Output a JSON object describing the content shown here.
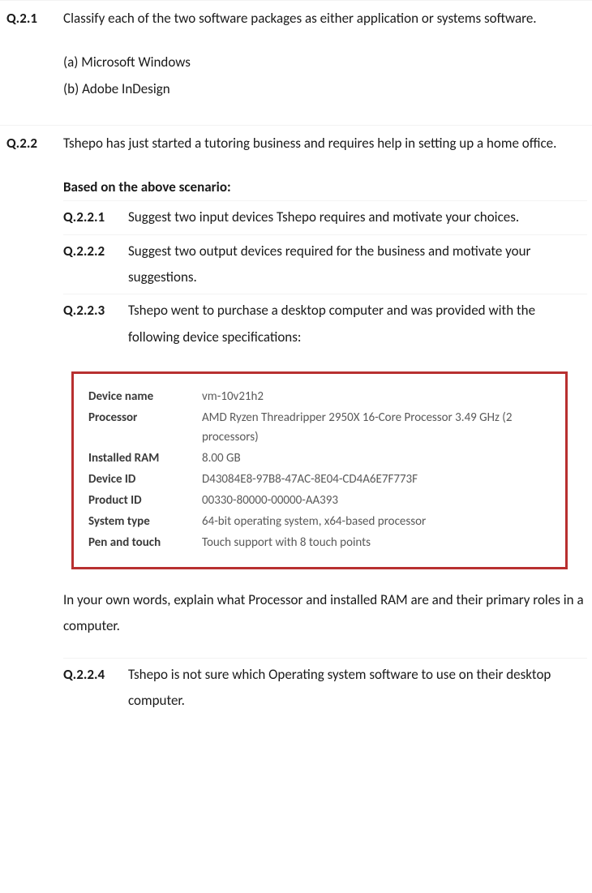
{
  "q21": {
    "num": "Q.2.1",
    "text": "Classify each of the two software packages as either application or systems software.",
    "a": "(a) Microsoft Windows",
    "b": "(b) Adobe InDesign"
  },
  "q22": {
    "num": "Q.2.2",
    "text": "Tshepo has just started a tutoring business and requires help in setting up a home office.",
    "scenario": "Based on the above scenario:",
    "s1": {
      "num": "Q.2.2.1",
      "text": "Suggest two input devices Tshepo requires and motivate your choices."
    },
    "s2": {
      "num": "Q.2.2.2",
      "text": "Suggest two output devices required for the business and motivate your suggestions."
    },
    "s3": {
      "num": "Q.2.2.3",
      "text": "Tshepo went to purchase a desktop computer and was provided with the following device specifications:"
    },
    "explain": "In your own words, explain what Processor and installed RAM are and their primary roles in a computer.",
    "s4": {
      "num": "Q.2.2.4",
      "text": "Tshepo is not sure which Operating system software to use on their desktop computer."
    }
  },
  "spec": {
    "border_color": "#b83030",
    "rows": [
      {
        "label": "Device name",
        "value": "vm-10v21h2"
      },
      {
        "label": "Processor",
        "value": "AMD Ryzen Threadripper 2950X 16-Core Processor 3.49 GHz  (2 processors)"
      },
      {
        "label": "Installed RAM",
        "value": "8.00 GB"
      },
      {
        "label": "Device ID",
        "value": "D43084E8-97B8-47AC-8E04-CD4A6E7F773F"
      },
      {
        "label": "Product ID",
        "value": "00330-80000-00000-AA393"
      },
      {
        "label": "System type",
        "value": "64-bit operating system, x64-based processor"
      },
      {
        "label": "Pen and touch",
        "value": "Touch support with 8 touch points"
      }
    ]
  }
}
